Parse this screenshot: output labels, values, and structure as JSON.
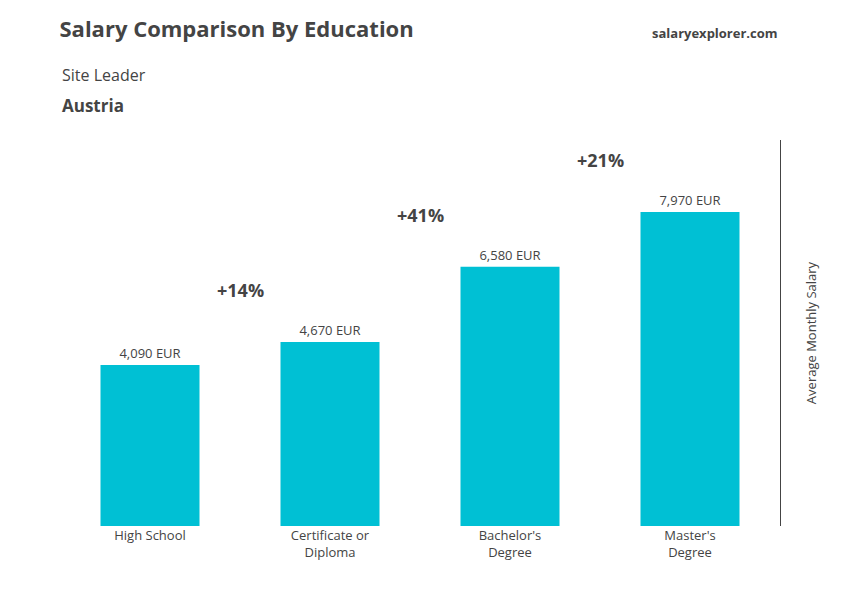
{
  "chart_data": {
    "type": "bar",
    "title": "Salary Comparison By Education",
    "subtitle": [
      "Site Leader",
      "Austria"
    ],
    "ylabel": "Average Monthly Salary",
    "categories": [
      "High School",
      "Certificate or\nDiploma",
      "Bachelor's\nDegree",
      "Master's\nDegree"
    ],
    "values": [
      4090,
      4670,
      6580,
      7970
    ],
    "value_labels": [
      "4,090 EUR",
      "4,670 EUR",
      "6,580 EUR",
      "7,970 EUR"
    ],
    "data_labels": true,
    "color": "#00c0d4",
    "ylim": [
      0,
      9800
    ],
    "grid": false,
    "tick_labels": "x",
    "annotations": [
      {
        "text": "+14%",
        "from": "High School",
        "to": "Certificate or\nDiploma"
      },
      {
        "text": "+41%",
        "from": "Certificate or\nDiploma",
        "to": "Bachelor's\nDegree"
      },
      {
        "text": "+21%",
        "from": "Bachelor's\nDegree",
        "to": "Master's\nDegree"
      },
      {
        "text": "salaryexplorer.com"
      }
    ]
  }
}
